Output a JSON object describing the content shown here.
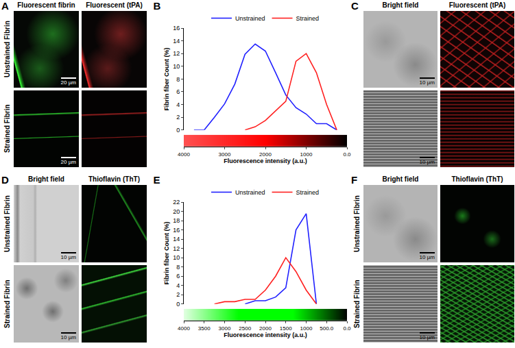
{
  "chart_data": [
    {
      "type": "line",
      "title": "B",
      "x": [
        3750,
        3500,
        3250,
        3000,
        2750,
        2500,
        2250,
        2000,
        1750,
        1500,
        1250,
        1000,
        750,
        500,
        250
      ],
      "series": [
        {
          "name": "Unstrained",
          "color": "#2020ff",
          "values": [
            0,
            0,
            2,
            4.1,
            7.2,
            11.9,
            13.5,
            12.4,
            9,
            5.5,
            3.5,
            2.5,
            1,
            1,
            0
          ]
        },
        {
          "name": "Strained",
          "color": "#ff2020",
          "values": [
            null,
            null,
            null,
            null,
            null,
            0,
            0.5,
            1.5,
            3,
            4.5,
            10.8,
            12,
            9,
            4,
            0
          ]
        }
      ],
      "xlabel": "Fluorescence intensity (a.u.)",
      "ylabel": "Fibrin fiber Count (%)",
      "xlim": [
        4000,
        0
      ],
      "xticks": [
        4000,
        3000,
        2000,
        1000,
        {
          "value": 0,
          "label": "0.0"
        }
      ],
      "ylim": [
        0,
        16
      ],
      "yticks": [
        0,
        2,
        4,
        6,
        8,
        10,
        12,
        14,
        16
      ],
      "grid": false,
      "legend": "top",
      "colorbar": {
        "range": [
          0,
          4000
        ],
        "colors": [
          "#000000",
          "#ff0000",
          "#ff5050"
        ]
      }
    },
    {
      "type": "line",
      "title": "E",
      "x": [
        3250,
        3000,
        2750,
        2500,
        2250,
        2000,
        1750,
        1500,
        1250,
        1000,
        750
      ],
      "series": [
        {
          "name": "Unstrained",
          "color": "#2020ff",
          "values": [
            null,
            null,
            null,
            0,
            0.7,
            0.7,
            1.5,
            3.5,
            16,
            19.5,
            0
          ]
        },
        {
          "name": "Strained",
          "color": "#ff2020",
          "values": [
            0,
            0.5,
            0.5,
            1,
            1,
            3,
            6,
            10,
            7,
            3,
            0
          ]
        }
      ],
      "xlabel": "Fluorescence intensity (a.u.)",
      "ylabel": "Fibrin fiber Count (%)",
      "xlim": [
        4000,
        0
      ],
      "xticks": [
        4000,
        3500,
        3000,
        2500,
        2000,
        1500,
        1000,
        {
          "value": 500,
          "label": "500.0"
        },
        {
          "value": 0,
          "label": "0.0"
        }
      ],
      "ylim": [
        0,
        22
      ],
      "yticks": [
        0,
        2,
        4,
        6,
        8,
        10,
        12,
        14,
        16,
        18,
        20,
        22
      ],
      "grid": false,
      "legend": "top",
      "colorbar": {
        "range": [
          0,
          4000
        ],
        "colors": [
          "#000000",
          "#00ff00",
          "#00ff00",
          "#e0ffe0"
        ]
      }
    }
  ],
  "panels": [
    {
      "letter": "A",
      "columns": [
        "Fluorescent fibrin",
        "Fluorescent (tPA)"
      ],
      "rows": [
        "Unstrained Fibrin",
        "Strained Fibrin"
      ],
      "scale_bar": "20 µm"
    },
    {
      "letter": "C",
      "columns": [
        "Bright field",
        "Fluorescent (tPA)"
      ],
      "rows": [],
      "scale_bar": "10 µm"
    },
    {
      "letter": "D",
      "columns": [
        "Bright field",
        "Thioflavin (ThT)"
      ],
      "rows": [
        "Unstrained Fibrin",
        "Strained Fibrin"
      ],
      "scale_bar": "10 µm"
    },
    {
      "letter": "F",
      "columns": [
        "Bright field",
        "Thioflavin (ThT)"
      ],
      "rows": [
        "Unstrained Fibrin",
        "Strained Fibrin"
      ],
      "scale_bar": "10 µm"
    }
  ]
}
